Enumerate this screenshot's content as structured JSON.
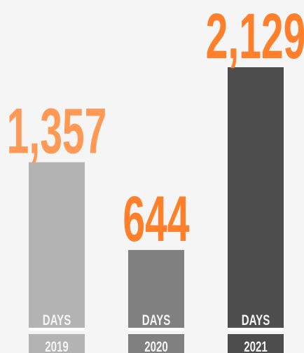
{
  "chart_data": {
    "type": "bar",
    "categories": [
      "2019",
      "2020",
      "2021"
    ],
    "values": [
      1357,
      644,
      2129
    ],
    "value_labels": [
      "1,357",
      "644",
      "2,129"
    ],
    "unit_label": "DAYS",
    "colors": [
      "#b3b3b3",
      "#808080",
      "#4d4d4d"
    ],
    "label_colors": [
      "#ff9955",
      "#ff7f2a",
      "#ff7f2a"
    ]
  }
}
